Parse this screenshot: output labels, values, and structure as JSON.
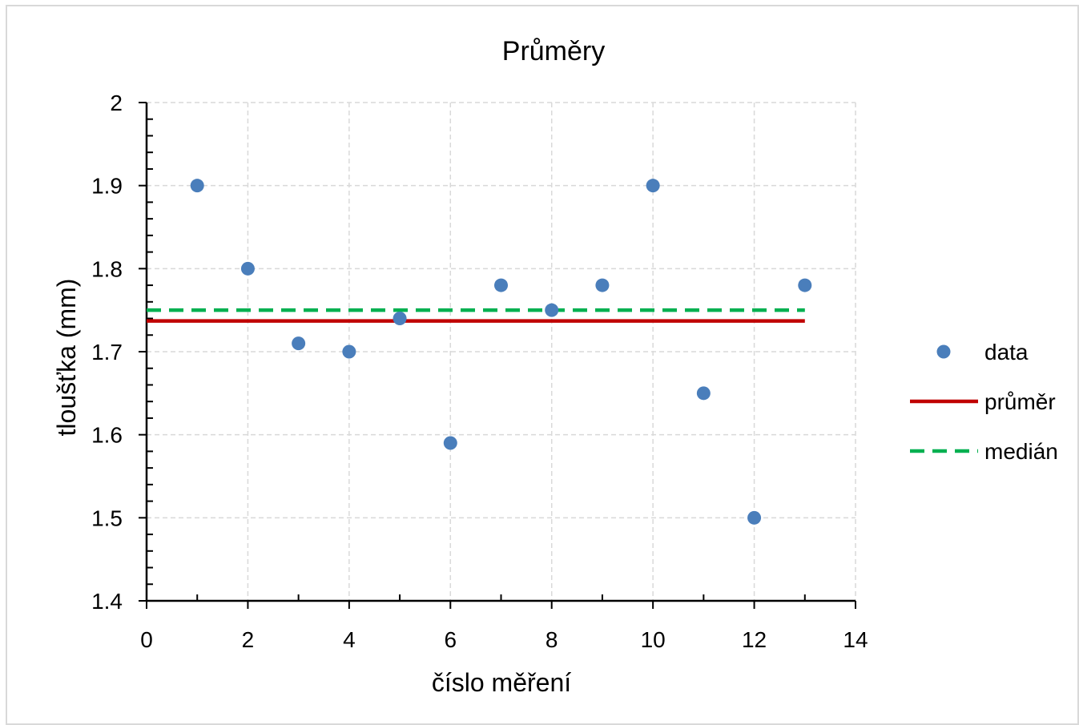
{
  "chart_data": {
    "type": "scatter",
    "title": "Průměry",
    "xlabel": "číslo měření",
    "ylabel": "tloušťka (mm)",
    "xlim": [
      0,
      14
    ],
    "ylim": [
      1.4,
      2.0
    ],
    "x_ticks": [
      "0",
      "2",
      "4",
      "6",
      "8",
      "10",
      "12",
      "14"
    ],
    "y_ticks": [
      "1.4",
      "1.5",
      "1.6",
      "1.7",
      "1.8",
      "1.9",
      "2"
    ],
    "grid": true,
    "legend_position": "right",
    "series": [
      {
        "name": "data",
        "kind": "scatter",
        "color": "#4a7ebb",
        "x": [
          1,
          2,
          3,
          4,
          5,
          6,
          7,
          8,
          9,
          10,
          11,
          12,
          13
        ],
        "y": [
          1.9,
          1.8,
          1.71,
          1.7,
          1.74,
          1.59,
          1.78,
          1.75,
          1.78,
          1.9,
          1.65,
          1.5,
          1.78
        ]
      },
      {
        "name": "průměr",
        "kind": "line",
        "style": "solid",
        "color": "#c00000",
        "x": [
          0,
          13
        ],
        "y": [
          1.737,
          1.737
        ]
      },
      {
        "name": "medián",
        "kind": "line",
        "style": "dashed",
        "color": "#00b050",
        "x": [
          0,
          13
        ],
        "y": [
          1.75,
          1.75
        ]
      }
    ]
  }
}
